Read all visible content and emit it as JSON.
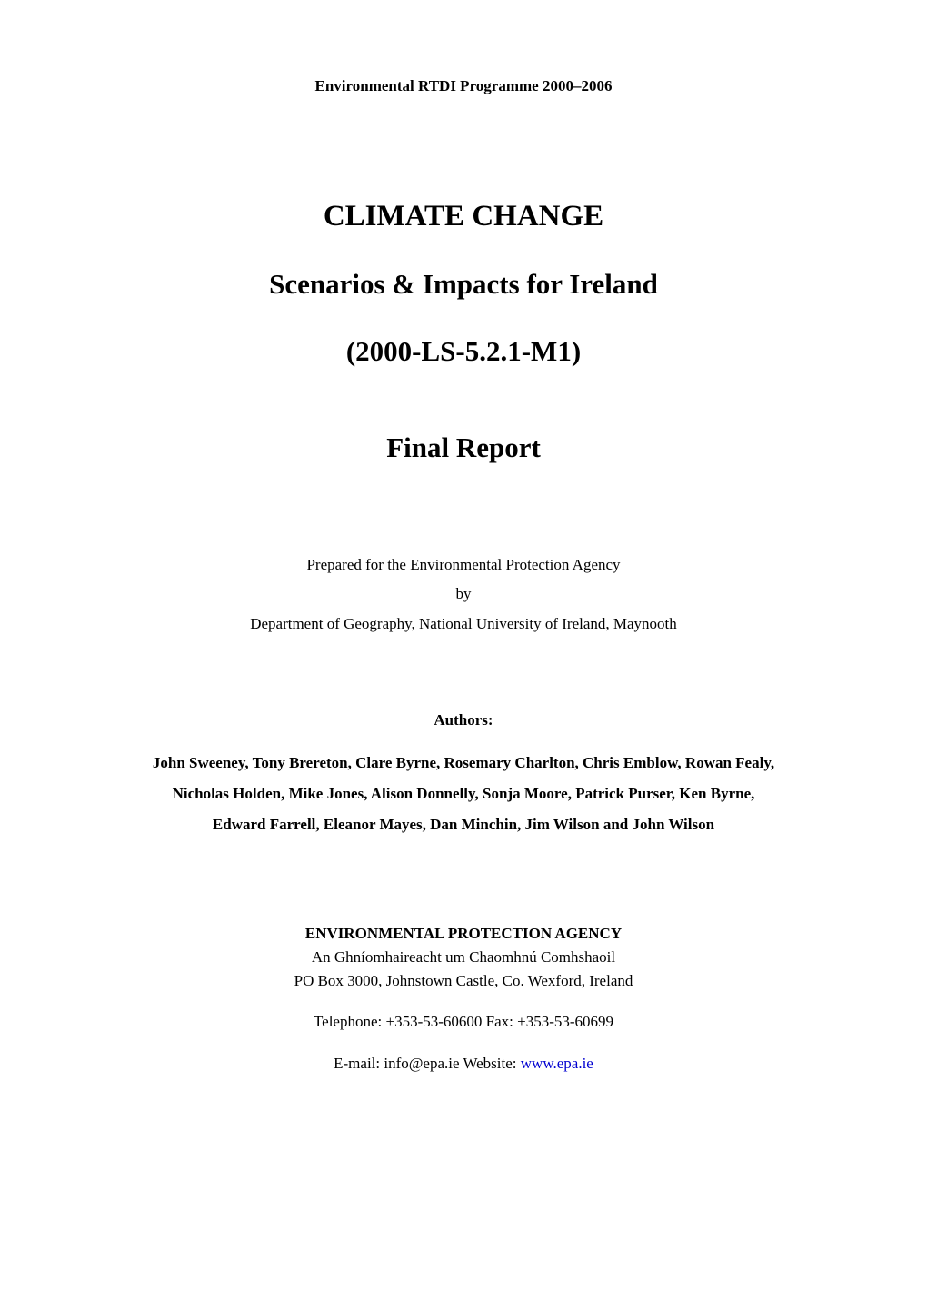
{
  "programme_line": "Environmental RTDI Programme 2000–2006",
  "title": {
    "line1": "CLIMATE CHANGE",
    "line2": "Scenarios & Impacts for Ireland",
    "code": "(2000-LS-5.2.1-M1)",
    "final": "Final Report"
  },
  "prepared": {
    "for": "Prepared for the Environmental Protection Agency",
    "by_word": "by",
    "by_org": "Department of Geography, National University of Ireland, Maynooth"
  },
  "authors": {
    "heading": "Authors:",
    "line1": "John Sweeney, Tony Brereton, Clare Byrne, Rosemary Charlton, Chris Emblow, Rowan Fealy,",
    "line2": "Nicholas Holden, Mike Jones, Alison Donnelly, Sonja Moore, Patrick Purser, Ken Byrne,",
    "line3": "Edward Farrell, Eleanor Mayes, Dan Minchin, Jim Wilson and John Wilson"
  },
  "agency": {
    "name": "ENVIRONMENTAL PROTECTION AGENCY",
    "irish": "An Ghníomhaireacht um Chaomhnú Comhshaoil",
    "address": "PO Box 3000, Johnstown Castle, Co. Wexford, Ireland",
    "phone": "Telephone: +353-53-60600 Fax: +353-53-60699",
    "email_prefix": "E-mail: info@epa.ie  Website: ",
    "website": "www.epa.ie"
  },
  "style": {
    "background_color": "#ffffff",
    "text_color": "#000000",
    "link_color": "#0000d0",
    "font_family": "Times New Roman",
    "title_fontsize_pt": 24,
    "body_fontsize_pt": 12,
    "final_report_fontsize_pt": 22
  }
}
